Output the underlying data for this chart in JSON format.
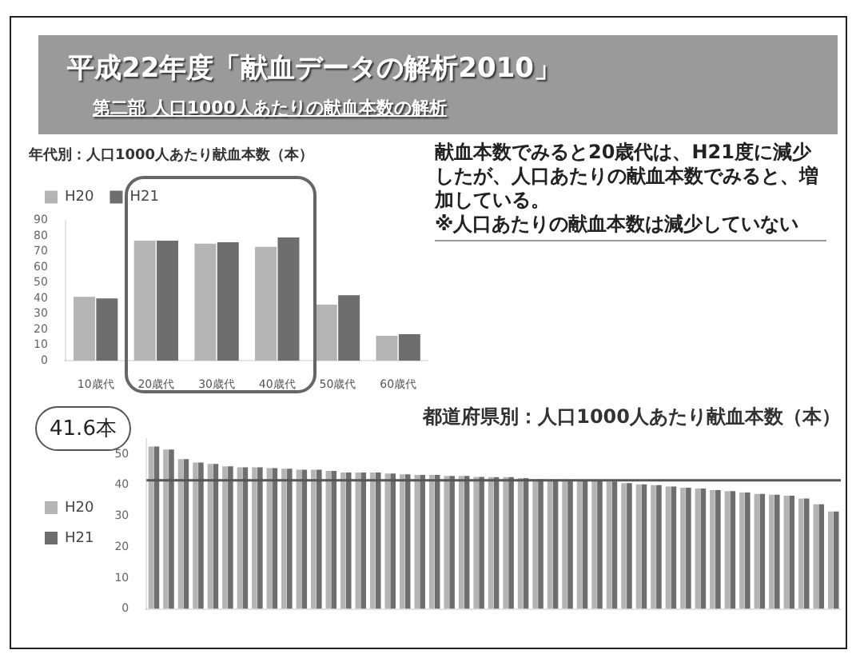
{
  "chart_data": [
    {
      "type": "bar",
      "title": "年代別：人口1000人あたり献血本数（本）",
      "categories": [
        "10歳代",
        "20歳代",
        "30歳代",
        "40歳代",
        "50歳代",
        "60歳代"
      ],
      "series": [
        {
          "name": "H20",
          "color": "#b4b4b4",
          "values": [
            41,
            77,
            75,
            73,
            36,
            16
          ]
        },
        {
          "name": "H21",
          "color": "#6e6e6e",
          "values": [
            40,
            77,
            76,
            79,
            42,
            17
          ]
        }
      ],
      "ylim": [
        0,
        90
      ],
      "yticks": [
        0,
        10,
        20,
        30,
        40,
        50,
        60,
        70,
        80,
        90
      ],
      "legend": "top left",
      "annotations": [
        "平成22年度「献血データの解析2010」",
        "第二部 人口1000人あたりの献血本数の解析",
        "献血本数でみると20歳代は、H21度に減少したが、人口あたりの献血本数でみると、増加している。",
        "※人口あたりの献血本数は減少していない"
      ]
    },
    {
      "type": "bar",
      "title": "都道府県別：人口1000人あたり献血本数（本）",
      "categories": [
        null,
        null,
        null,
        null,
        null,
        null,
        null,
        null,
        null,
        null,
        null,
        null,
        null,
        null,
        null,
        null,
        null,
        null,
        null,
        null,
        null,
        null,
        null,
        null,
        null,
        null,
        null,
        null,
        null,
        null,
        null,
        null,
        null,
        null,
        null,
        null,
        null,
        null,
        null,
        null,
        null,
        null,
        null,
        null,
        null,
        null,
        null
      ],
      "series": [
        {
          "name": "H20",
          "color": "#b4b4b4",
          "values": [
            52.5,
            51.5,
            48.4,
            47.3,
            46.9,
            46.1,
            45.8,
            45.8,
            45.5,
            45.3,
            45.0,
            45.0,
            44.6,
            44.1,
            44.1,
            44.1,
            43.8,
            43.5,
            43.3,
            43.3,
            43.0,
            43.0,
            42.7,
            42.6,
            42.6,
            42.3,
            41.9,
            41.8,
            41.8,
            41.5,
            41.5,
            41.2,
            40.7,
            40.3,
            40.0,
            39.6,
            39.2,
            38.9,
            38.4,
            38.1,
            37.6,
            37.2,
            36.9,
            36.6,
            35.7,
            33.8,
            31.5
          ]
        },
        {
          "name": "H21",
          "color": "#6e6e6e",
          "values": [
            52.5,
            51.5,
            48.4,
            47.3,
            46.9,
            46.1,
            45.8,
            45.8,
            45.5,
            45.3,
            45.0,
            45.0,
            44.6,
            44.1,
            44.1,
            44.1,
            43.8,
            43.5,
            43.3,
            43.3,
            43.0,
            43.0,
            42.7,
            42.6,
            42.6,
            42.3,
            41.9,
            41.8,
            41.8,
            41.5,
            41.5,
            41.2,
            40.7,
            40.3,
            40.0,
            39.6,
            39.2,
            38.9,
            38.4,
            38.1,
            37.6,
            37.2,
            36.9,
            36.6,
            35.7,
            33.8,
            31.5
          ]
        }
      ],
      "ylim": [
        0,
        55
      ],
      "yticks": [
        0,
        10,
        20,
        30,
        40,
        50
      ],
      "legend": "left",
      "ref_lines": [
        {
          "axis": "y",
          "value": 41.6,
          "label": "41.6本",
          "color": "#555555"
        }
      ]
    }
  ]
}
